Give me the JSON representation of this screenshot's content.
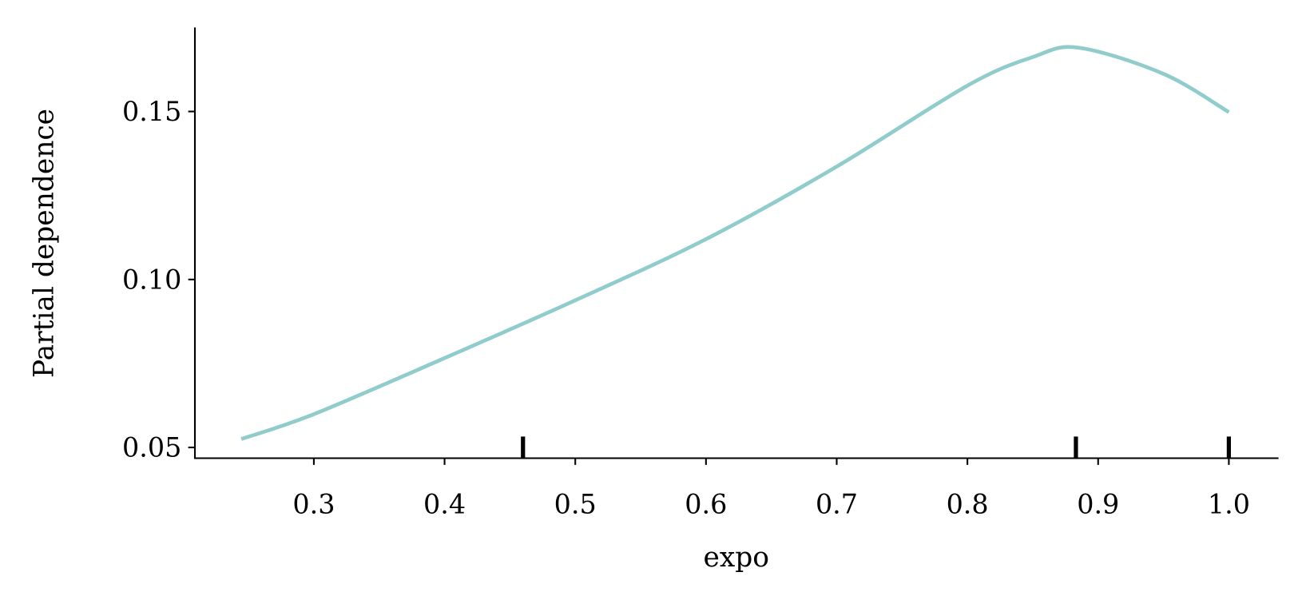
{
  "chart_data": {
    "type": "line",
    "title": "",
    "xlabel": "expo",
    "ylabel": "Partial dependence",
    "xlim": [
      0.209,
      1.038
    ],
    "ylim": [
      0.0468,
      0.175
    ],
    "xticks": [
      0.3,
      0.4,
      0.5,
      0.6,
      0.7,
      0.8,
      0.9,
      1.0
    ],
    "xtick_labels": [
      "0.3",
      "0.4",
      "0.5",
      "0.6",
      "0.7",
      "0.8",
      "0.9",
      "1.0"
    ],
    "yticks": [
      0.05,
      0.1,
      0.15
    ],
    "ytick_labels": [
      "0.05",
      "0.10",
      "0.15"
    ],
    "grid": false,
    "line_color": "#8fcccb",
    "series": [
      {
        "x": [
          0.2445,
          0.3,
          0.4,
          0.5,
          0.6,
          0.7,
          0.8,
          0.85,
          0.885,
          0.95,
          1.0
        ],
        "y": [
          0.0525,
          0.0599,
          0.0766,
          0.0938,
          0.112,
          0.1336,
          0.1577,
          0.1662,
          0.169,
          0.1612,
          0.1498
        ]
      }
    ],
    "rug": [
      0.46,
      0.883,
      1.0
    ]
  }
}
